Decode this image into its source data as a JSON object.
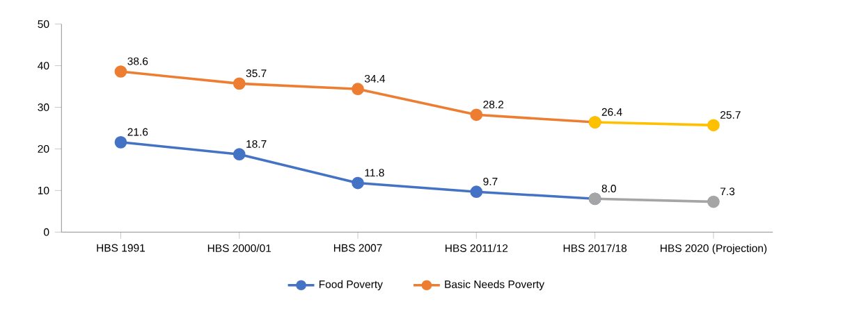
{
  "chart_data": {
    "type": "line",
    "categories": [
      "HBS 1991",
      "HBS 2000/01",
      "HBS 2007",
      "HBS 2011/12",
      "HBS 2017/18",
      "HBS 2020 (Projection)"
    ],
    "series": [
      {
        "name": "Food Poverty",
        "color": "#4472c4",
        "values": [
          21.6,
          18.7,
          11.8,
          9.7,
          8.0,
          null
        ],
        "value_labels": [
          "21.6",
          "18.7",
          "11.8",
          "9.7",
          "8.0",
          null
        ]
      },
      {
        "name": "Basic Needs Poverty",
        "color": "#ed7d31",
        "values": [
          38.6,
          35.7,
          34.4,
          28.2,
          26.4,
          null
        ],
        "value_labels": [
          "38.6",
          "35.7",
          "34.4",
          "28.2",
          "26.4",
          null
        ]
      },
      {
        "color": "#a5a5a5",
        "values": [
          null,
          null,
          null,
          null,
          8.0,
          7.3
        ],
        "value_labels": [
          null,
          null,
          null,
          null,
          null,
          "7.3"
        ]
      },
      {
        "color": "#ffc000",
        "values": [
          null,
          null,
          null,
          null,
          26.4,
          25.7
        ],
        "value_labels": [
          null,
          null,
          null,
          null,
          null,
          "25.7"
        ]
      }
    ],
    "ylim": [
      0,
      50
    ],
    "yticks": [
      0,
      10,
      20,
      30,
      40,
      50
    ],
    "grid": false,
    "legend": "bottom",
    "marker": "circle",
    "line_style": "solid"
  }
}
